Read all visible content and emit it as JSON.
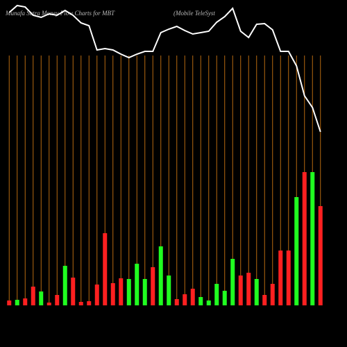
{
  "chart_data": {
    "type": "bar",
    "title": "Munafa Sutra Money Flow Charts for MBT",
    "subtitle": "(Mobile TeleSyst",
    "categories": [
      null,
      null,
      null,
      null,
      null,
      null,
      null,
      null,
      null,
      null,
      null,
      null,
      null,
      null,
      null,
      null,
      null,
      null,
      null,
      null,
      null,
      null,
      null,
      null,
      null,
      null,
      null,
      null,
      null,
      null,
      null,
      null,
      null,
      null,
      null,
      null,
      null,
      null,
      null,
      null
    ],
    "values": [
      7,
      8,
      10,
      27,
      20,
      4,
      15,
      57,
      40,
      5,
      6,
      30,
      104,
      32,
      39,
      38,
      60,
      38,
      55,
      85,
      43,
      9,
      16,
      24,
      12,
      7,
      31,
      21,
      67,
      43,
      47,
      38,
      15,
      31,
      79,
      79,
      156,
      192,
      192,
      143
    ],
    "colors": [
      "#ff2020",
      "#20ff20",
      "#ff2020",
      "#ff2020",
      "#20ff20",
      "#ff2020",
      "#ff2020",
      "#20ff20",
      "#ff2020",
      "#ff2020",
      "#ff2020",
      "#ff2020",
      "#ff2020",
      "#ff2020",
      "#ff2020",
      "#20ff20",
      "#20ff20",
      "#20ff20",
      "#ff2020",
      "#20ff20",
      "#20ff20",
      "#ff2020",
      "#ff2020",
      "#ff2020",
      "#20ff20",
      "#20ff20",
      "#20ff20",
      "#20ff20",
      "#20ff20",
      "#ff2020",
      "#ff2020",
      "#20ff20",
      "#ff2020",
      "#ff2020",
      "#ff2020",
      "#ff2020",
      "#20ff20",
      "#ff2020",
      "#20ff20",
      "#ff2020"
    ],
    "ylim": [
      0,
      440
    ],
    "line": {
      "axis": "y2",
      "color": "#ffffff",
      "values": [
        482,
        492,
        490,
        478,
        475,
        480,
        478,
        485,
        478,
        467,
        463,
        428,
        430,
        428,
        422,
        417,
        422,
        426,
        426,
        453,
        458,
        462,
        456,
        451,
        453,
        455,
        468,
        476,
        488,
        455,
        446,
        465,
        466,
        457,
        426,
        426,
        405,
        362,
        345,
        310
      ]
    },
    "y2lim": [
      0,
      500
    ],
    "grid": true,
    "grid_color": "#b86a10"
  }
}
